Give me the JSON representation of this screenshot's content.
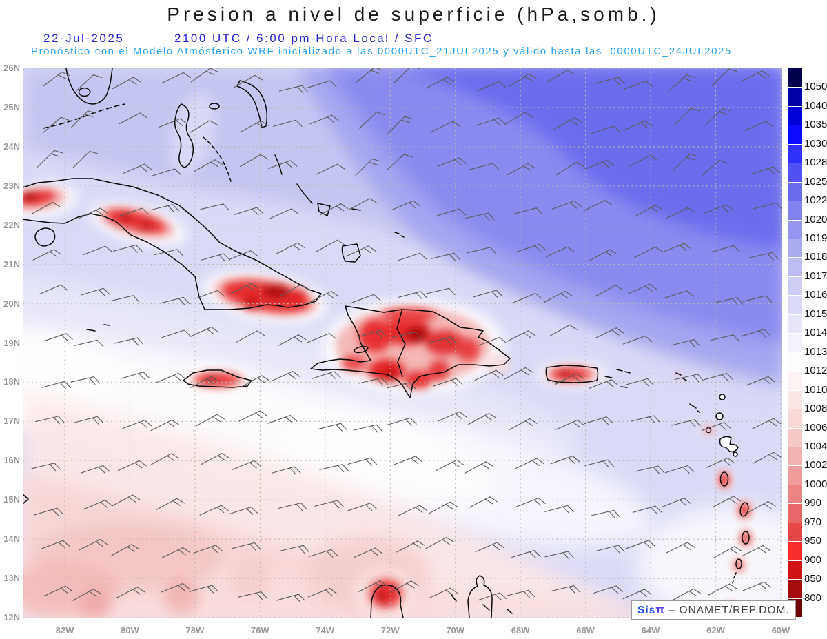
{
  "header": {
    "title": "Presion a nivel de superficie (hPa,somb.)",
    "date": "22-Jul-2025",
    "time_line": "2100 UTC / 6:00 pm Hora Local / SFC",
    "forecast_line": "Pronóstico con el Modelo Atmósferico WRF inicializado a las 0000UTC_21JUL2025 y válido hasta las  0000UTC_24JUL2025"
  },
  "map": {
    "lat_labels": [
      "26N",
      "25N",
      "24N",
      "23N",
      "22N",
      "21N",
      "20N",
      "19N",
      "18N",
      "17N",
      "16N",
      "15N",
      "14N",
      "13N",
      "12N"
    ],
    "lon_labels": [
      "82W",
      "80W",
      "78W",
      "76W",
      "74W",
      "72W",
      "70W",
      "68W",
      "66W",
      "64W",
      "62W",
      "60W"
    ]
  },
  "colorbar": {
    "unit": "hPa",
    "labels": [
      "1050",
      "1040",
      "1035",
      "1030",
      "1028",
      "1025",
      "1022",
      "1020",
      "1019",
      "1018",
      "1017",
      "1016",
      "1015",
      "1014",
      "1013",
      "1012",
      "1010",
      "1008",
      "1006",
      "1004",
      "1002",
      "1000",
      "990",
      "970",
      "950",
      "900",
      "850",
      "800"
    ],
    "colors": [
      "#00004f",
      "#0000a4",
      "#0000d8",
      "#0a0aff",
      "#3030fb",
      "#5050f3",
      "#6b6bee",
      "#8181ef",
      "#9696f0",
      "#ababf2",
      "#bdbdf3",
      "#cdcdf5",
      "#dadaf6",
      "#e6e6f8",
      "#f2f2fb",
      "#fdfdfe",
      "#fdf2f2",
      "#fbe6e6",
      "#f9d8d8",
      "#f6c7c7",
      "#f3b2b2",
      "#f09c9c",
      "#ed8484",
      "#e96666",
      "#e64848",
      "#f92b2b",
      "#cf1313",
      "#a50c0c",
      "#700202"
    ]
  },
  "watermark": {
    "brand": "Sis",
    "pi": "π",
    "org": " – ONAMET/REP.DOM."
  },
  "palette": {
    "title_text": "#1a1a1a",
    "date_blue": "#2525d4",
    "subtitle_blue": "#2aa4f4",
    "axis_gray": "#98989c",
    "high_pressure_blue": "#6c6cee",
    "sea_lavender": "#dadaf6",
    "white_band": "#ffffff",
    "low_pink": "#f8d6d6",
    "island_low_red": "#cc1111",
    "coastline": "#0a0a0a",
    "grid_dots": "#b9b9ac",
    "wind_barbs": "#5c5c5c"
  },
  "chart_data": {
    "type": "heatmap",
    "title": "Presion a nivel de superficie (hPa,somb.)",
    "x_ticks": [
      "82W",
      "80W",
      "78W",
      "76W",
      "74W",
      "72W",
      "70W",
      "68W",
      "66W",
      "64W",
      "62W",
      "60W"
    ],
    "y_ticks": [
      "26N",
      "25N",
      "24N",
      "23N",
      "22N",
      "21N",
      "20N",
      "19N",
      "18N",
      "17N",
      "16N",
      "15N",
      "14N",
      "13N",
      "12N"
    ],
    "colorbar_levels_hPa": [
      800,
      850,
      900,
      950,
      970,
      990,
      1000,
      1002,
      1004,
      1006,
      1008,
      1010,
      1012,
      1013,
      1014,
      1015,
      1016,
      1017,
      1018,
      1019,
      1020,
      1022,
      1025,
      1028,
      1030,
      1035,
      1040,
      1050
    ],
    "features": [
      "High pressure ridge (~1020-1025 hPa, blue shading) over the Atlantic in the northeast corner",
      "Broad 1015-1018 hPa lavender field over the central Caribbean",
      "White 1013-1014 hPa band crossing the southwest of the domain",
      "1010-1012 hPa pale pink zone in the southern Caribbean",
      "Heat lows (red shading, ~1000-1008 hPa) over Cuba, Jamaica, Hispaniola, Puerto Rico, the Lesser Antilles and the Guajira peninsula",
      "Easterly trade-wind barbs across the whole domain"
    ]
  }
}
